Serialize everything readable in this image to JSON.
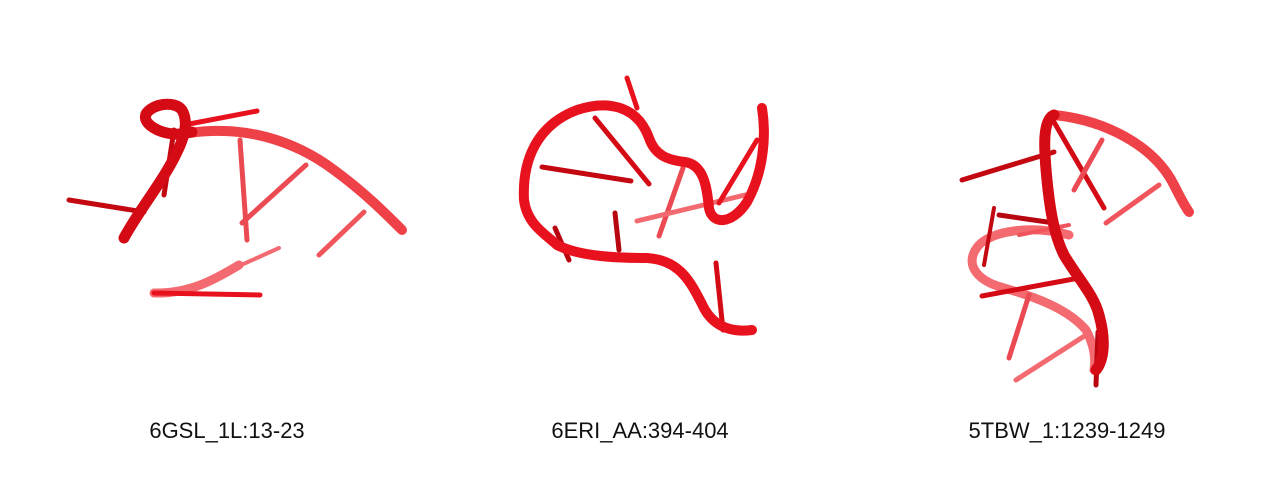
{
  "colors": {
    "backbone_front": "#e8121e",
    "backbone_back": "#f0555c",
    "base_dark": "#c40812",
    "base_light": "#ec4a52"
  },
  "panels": [
    {
      "label": "6GSL_1L:13-23"
    },
    {
      "label": "6ERI_AA:394-404"
    },
    {
      "label": "5TBW_1:1239-1249"
    }
  ]
}
